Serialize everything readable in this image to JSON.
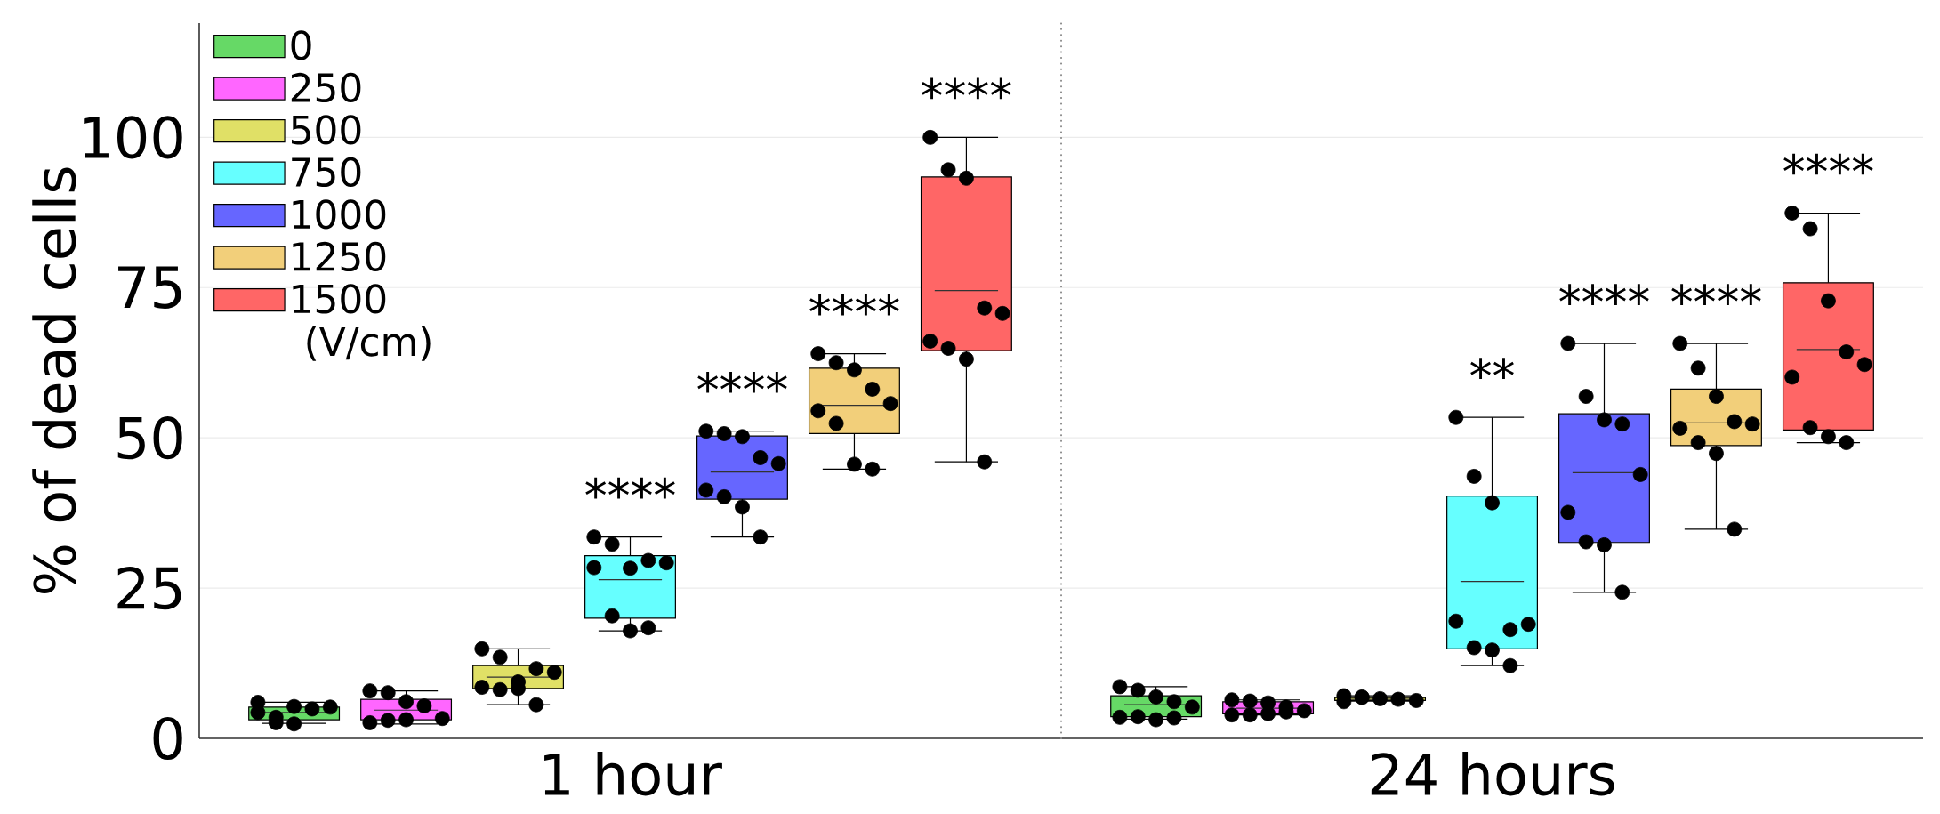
{
  "chart_data": {
    "type": "box",
    "categories": [
      "1 hour",
      "24 hours"
    ],
    "ylabel": "% of dead cells",
    "ylim": [
      0,
      119
    ],
    "yticks": [
      0,
      25,
      50,
      75,
      100
    ],
    "grid": "y",
    "legend": "top left",
    "legend_title": "(V/cm)",
    "marker": "circle",
    "series": [
      {
        "name": "0",
        "color": "#66d966",
        "boxes": [
          {
            "low": 2.5,
            "q1": 3.1,
            "median": 4.3,
            "q3": 5.2,
            "high": 6.0
          },
          {
            "low": 3.2,
            "q1": 3.6,
            "median": 5.6,
            "q3": 7.1,
            "high": 8.6
          }
        ],
        "value_labels": [
          null,
          null
        ]
      },
      {
        "name": "250",
        "color": "#ff66ff",
        "boxes": [
          {
            "low": 2.4,
            "q1": 3.1,
            "median": 4.7,
            "q3": 6.5,
            "high": 7.9
          },
          {
            "low": 3.9,
            "q1": 4.1,
            "median": 5.0,
            "q3": 6.1,
            "high": 6.4
          }
        ],
        "value_labels": [
          null,
          null
        ]
      },
      {
        "name": "500",
        "color": "#e0e066",
        "boxes": [
          {
            "low": 5.6,
            "q1": 8.3,
            "median": 10.2,
            "q3": 12.1,
            "high": 14.9
          },
          {
            "low": 6.2,
            "q1": 6.3,
            "median": 6.5,
            "q3": 6.8,
            "high": 7.1
          }
        ],
        "value_labels": [
          null,
          null
        ]
      },
      {
        "name": "750",
        "color": "#66ffff",
        "boxes": [
          {
            "low": 17.9,
            "q1": 20.0,
            "median": 26.4,
            "q3": 30.4,
            "high": 33.5
          },
          {
            "low": 12.1,
            "q1": 14.9,
            "median": 26.1,
            "q3": 40.3,
            "high": 53.4
          }
        ],
        "value_labels": [
          "****",
          "**"
        ]
      },
      {
        "name": "1000",
        "color": "#6666ff",
        "boxes": [
          {
            "low": 33.5,
            "q1": 39.8,
            "median": 44.3,
            "q3": 50.3,
            "high": 51.1
          },
          {
            "low": 24.3,
            "q1": 32.6,
            "median": 44.2,
            "q3": 54.0,
            "high": 65.7
          }
        ],
        "value_labels": [
          "****",
          "****"
        ]
      },
      {
        "name": "1250",
        "color": "#f2cf7a",
        "boxes": [
          {
            "low": 44.8,
            "q1": 50.7,
            "median": 55.4,
            "q3": 61.6,
            "high": 64.0
          },
          {
            "low": 34.8,
            "q1": 48.7,
            "median": 52.5,
            "q3": 58.1,
            "high": 65.7
          }
        ],
        "value_labels": [
          "****",
          "****"
        ]
      },
      {
        "name": "1500",
        "color": "#ff6666",
        "boxes": [
          {
            "low": 46.0,
            "q1": 64.5,
            "median": 74.5,
            "q3": 93.4,
            "high": 100
          },
          {
            "low": 49.2,
            "q1": 51.3,
            "median": 64.7,
            "q3": 75.8,
            "high": 87.4
          }
        ],
        "value_labels": [
          "****",
          "****"
        ]
      },
      {
        "type": "scatter",
        "color": "#000000",
        "x": [
          "1 hour",
          "1 hour",
          "1 hour",
          "1 hour",
          "1 hour",
          "1 hour",
          "1 hour",
          "1 hour",
          "24 hours",
          "24 hours",
          "24 hours",
          "24 hours",
          "24 hours",
          "24 hours",
          "24 hours",
          "24 hours",
          "24 hours"
        ],
        "values": [
          6.0,
          3.5,
          5.3,
          4.9,
          5.2,
          4.3,
          2.6,
          2.4,
          8.6,
          8.0,
          6.9,
          6.1,
          5.2,
          3.5,
          3.6,
          3.1,
          3.4
        ]
      },
      {
        "type": "scatter",
        "color": "#000000",
        "x": [
          "1 hour",
          "1 hour",
          "1 hour",
          "1 hour",
          "1 hour",
          "1 hour",
          "1 hour",
          "1 hour",
          "24 hours",
          "24 hours",
          "24 hours",
          "24 hours",
          "24 hours",
          "24 hours",
          "24 hours",
          "24 hours",
          "24 hours"
        ],
        "values": [
          7.9,
          7.6,
          6.1,
          5.4,
          3.3,
          2.6,
          3.0,
          3.1,
          6.4,
          6.2,
          5.9,
          5.2,
          4.6,
          3.9,
          3.9,
          4.1,
          4.4
        ]
      },
      {
        "type": "scatter",
        "color": "#000000",
        "x": [
          "1 hour",
          "1 hour",
          "1 hour",
          "1 hour",
          "1 hour",
          "1 hour",
          "1 hour",
          "1 hour",
          "1 hour",
          "24 hours",
          "24 hours",
          "24 hours",
          "24 hours",
          "24 hours",
          "24 hours",
          "24 hours"
        ],
        "values": [
          14.9,
          13.5,
          9.4,
          11.6,
          11.0,
          8.5,
          8.1,
          8.3,
          5.6,
          7.1,
          6.9,
          6.6,
          6.5,
          6.3,
          6.1,
          6.8
        ]
      },
      {
        "type": "scatter",
        "color": "#000000",
        "x": [
          "1 hour",
          "1 hour",
          "1 hour",
          "1 hour",
          "1 hour",
          "1 hour",
          "1 hour",
          "1 hour",
          "1 hour",
          "24 hours",
          "24 hours",
          "24 hours",
          "24 hours",
          "24 hours",
          "24 hours",
          "24 hours",
          "24 hours",
          "24 hours"
        ],
        "values": [
          33.5,
          32.3,
          28.3,
          29.6,
          29.2,
          28.4,
          20.4,
          17.9,
          18.4,
          53.4,
          43.6,
          39.2,
          18.1,
          19.0,
          19.5,
          15.1,
          14.7,
          12.1
        ]
      },
      {
        "type": "scatter",
        "color": "#000000",
        "x": [
          "1 hour",
          "1 hour",
          "1 hour",
          "1 hour",
          "1 hour",
          "1 hour",
          "1 hour",
          "1 hour",
          "1 hour",
          "24 hours",
          "24 hours",
          "24 hours",
          "24 hours",
          "24 hours",
          "24 hours",
          "24 hours",
          "24 hours",
          "24 hours"
        ],
        "values": [
          51.1,
          50.7,
          50.2,
          46.7,
          45.7,
          41.3,
          40.2,
          38.5,
          33.5,
          65.7,
          56.9,
          53.0,
          52.3,
          43.9,
          37.6,
          32.7,
          32.2,
          24.3
        ]
      },
      {
        "type": "scatter",
        "color": "#000000",
        "x": [
          "1 hour",
          "1 hour",
          "1 hour",
          "1 hour",
          "1 hour",
          "1 hour",
          "1 hour",
          "1 hour",
          "1 hour",
          "24 hours",
          "24 hours",
          "24 hours",
          "24 hours",
          "24 hours",
          "24 hours",
          "24 hours",
          "24 hours",
          "24 hours"
        ],
        "values": [
          64.0,
          62.5,
          61.3,
          58.1,
          55.7,
          54.5,
          52.4,
          45.6,
          44.8,
          65.7,
          61.6,
          56.9,
          52.7,
          52.3,
          51.6,
          49.2,
          47.4,
          34.8
        ]
      },
      {
        "type": "scatter",
        "color": "#000000",
        "x": [
          "1 hour",
          "1 hour",
          "1 hour",
          "1 hour",
          "1 hour",
          "1 hour",
          "1 hour",
          "1 hour",
          "1 hour",
          "24 hours",
          "24 hours",
          "24 hours",
          "24 hours",
          "24 hours",
          "24 hours",
          "24 hours",
          "24 hours",
          "24 hours"
        ],
        "values": [
          100,
          94.6,
          93.2,
          71.6,
          70.7,
          66.1,
          64.9,
          63.1,
          46.0,
          87.4,
          84.8,
          72.8,
          64.3,
          62.2,
          60.1,
          51.7,
          50.2,
          49.2
        ]
      }
    ]
  }
}
